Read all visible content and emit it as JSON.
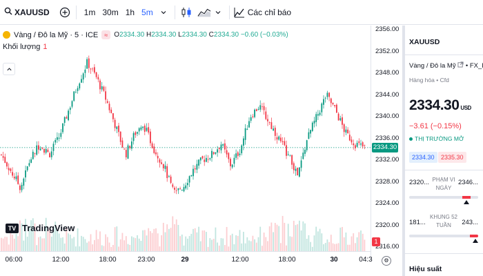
{
  "toolbar": {
    "symbol": "XAUUSD",
    "intervals": [
      "1m",
      "30m",
      "1h",
      "5m"
    ],
    "active_interval": "5m",
    "indicators_label": "Các chỉ báo"
  },
  "legend": {
    "title": "Vàng / Đô la Mỹ · 5 · ICE",
    "ohlc": {
      "o_label": "O",
      "o": "2334.30",
      "h_label": "H",
      "h": "2334.30",
      "l_label": "L",
      "l": "2334.30",
      "c_label": "C",
      "c": "2334.30",
      "change": "−0.60 (−0.03%)"
    },
    "volume_label": "Khối lượng",
    "volume_value": "1"
  },
  "price_axis": {
    "labels": [
      "2356.00",
      "2352.00",
      "2348.00",
      "2344.00",
      "2340.00",
      "2336.00",
      "2332.00",
      "2328.00",
      "2324.00",
      "2320.00",
      "2316.00"
    ],
    "last_price": "2334.30"
  },
  "time_axis": {
    "labels": [
      {
        "text": "06:00",
        "bold": false
      },
      {
        "text": "12:00",
        "bold": false
      },
      {
        "text": "18:00",
        "bold": false
      },
      {
        "text": "23:00",
        "bold": false
      },
      {
        "text": "29",
        "bold": true
      },
      {
        "text": "12:00",
        "bold": false
      },
      {
        "text": "18:00",
        "bold": false
      },
      {
        "text": "30",
        "bold": true
      },
      {
        "text": "04:3",
        "bold": false
      }
    ]
  },
  "branding": {
    "logo_text": "TradingView"
  },
  "volume_badge": "1",
  "panel": {
    "symbol": "XAUUSD",
    "name": "Vàng / Đô la Mỹ",
    "source": "FX_IDC",
    "type": "Hàng hóa • Cfd",
    "price": "2334.30",
    "currency": "USD",
    "change": "−3.61 (−0.15%)",
    "market_status": "THỊ TRƯỜNG MỞ",
    "bid": "2334.30",
    "ask": "2335.30",
    "day_range": {
      "low": "2320...",
      "high": "2346...",
      "title": "PHẠM VI NGÀY",
      "position": 0.83
    },
    "week52_range": {
      "low": "181...",
      "high": "243...",
      "title": "KHUNG 52 TUẦN",
      "position": 0.96
    },
    "performance_label": "Hiệu suất"
  },
  "colors": {
    "up": "#089981",
    "down": "#f23645",
    "accent": "#2962ff",
    "gold": "#f5b400"
  },
  "chart_data": {
    "type": "candlestick",
    "interval": "5",
    "ylim": [
      2316,
      2356
    ],
    "x_ticks": [
      "06:00",
      "12:00",
      "18:00",
      "23:00",
      "29",
      "12:00",
      "18:00",
      "30",
      "04:3"
    ],
    "close_path": [
      {
        "t": "04:00",
        "v": 2333
      },
      {
        "t": "06:00",
        "v": 2330
      },
      {
        "t": "07:30",
        "v": 2327
      },
      {
        "t": "08:30",
        "v": 2332
      },
      {
        "t": "10:00",
        "v": 2335
      },
      {
        "t": "11:30",
        "v": 2333
      },
      {
        "t": "12:30",
        "v": 2336
      },
      {
        "t": "14:00",
        "v": 2341
      },
      {
        "t": "15:30",
        "v": 2346
      },
      {
        "t": "16:30",
        "v": 2350
      },
      {
        "t": "18:00",
        "v": 2347
      },
      {
        "t": "19:30",
        "v": 2343
      },
      {
        "t": "21:00",
        "v": 2338
      },
      {
        "t": "22:00",
        "v": 2333
      },
      {
        "t": "23:30",
        "v": 2337
      },
      {
        "t": "01:00",
        "v": 2338
      },
      {
        "t": "02:30",
        "v": 2334
      },
      {
        "t": "03:30",
        "v": 2331
      },
      {
        "t": "05:00",
        "v": 2326
      },
      {
        "t": "06:30",
        "v": 2327
      },
      {
        "t": "08:00",
        "v": 2330
      },
      {
        "t": "09:30",
        "v": 2332
      },
      {
        "t": "11:00",
        "v": 2333
      },
      {
        "t": "12:30",
        "v": 2335
      },
      {
        "t": "14:00",
        "v": 2331
      },
      {
        "t": "15:30",
        "v": 2334
      },
      {
        "t": "16:30",
        "v": 2340
      },
      {
        "t": "17:30",
        "v": 2342
      },
      {
        "t": "18:30",
        "v": 2339
      },
      {
        "t": "19:30",
        "v": 2336
      },
      {
        "t": "20:30",
        "v": 2333
      },
      {
        "t": "21:30",
        "v": 2329
      },
      {
        "t": "22:30",
        "v": 2336
      },
      {
        "t": "23:30",
        "v": 2340
      },
      {
        "t": "00:30",
        "v": 2344
      },
      {
        "t": "01:30",
        "v": 2341
      },
      {
        "t": "02:30",
        "v": 2337
      },
      {
        "t": "03:30",
        "v": 2335
      },
      {
        "t": "04:15",
        "v": 2334.3
      }
    ]
  }
}
